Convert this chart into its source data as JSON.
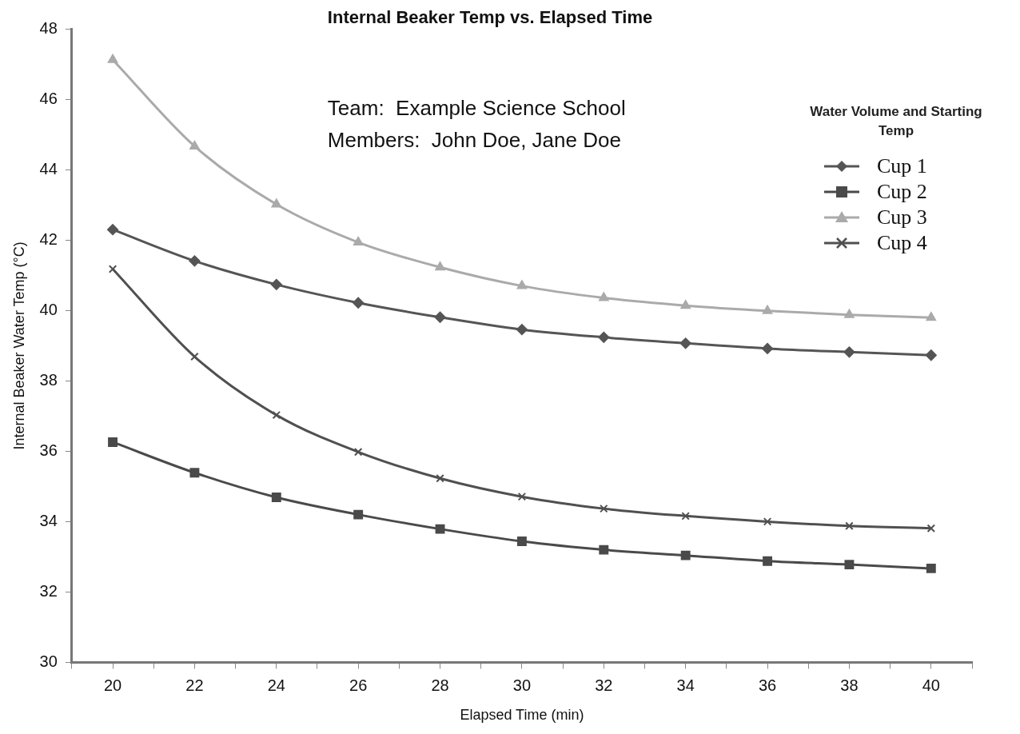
{
  "chart_data": {
    "type": "line",
    "title": "Internal Beaker Temp vs. Elapsed Time",
    "xlabel": "Elapsed Time (min)",
    "ylabel": "Internal Beaker Water Temp (°C)",
    "legend_title": "Water Volume and Starting Temp",
    "annotations": [
      "Team:  Example Science School",
      "Members:  John Doe, Jane Doe"
    ],
    "x": [
      20,
      22,
      24,
      26,
      28,
      30,
      32,
      34,
      36,
      38,
      40
    ],
    "series": [
      {
        "name": "Cup 1",
        "color": "#555555",
        "marker": "diamond",
        "values": [
          42.3,
          41.41,
          40.74,
          40.22,
          39.81,
          39.46,
          39.24,
          39.07,
          38.92,
          38.82,
          38.73
        ]
      },
      {
        "name": "Cup 2",
        "color": "#4a4a4a",
        "marker": "square",
        "values": [
          36.26,
          35.39,
          34.69,
          34.2,
          33.79,
          33.44,
          33.2,
          33.04,
          32.88,
          32.78,
          32.67
        ]
      },
      {
        "name": "Cup 3",
        "color": "#aaaaaa",
        "marker": "triangle",
        "values": [
          47.13,
          44.67,
          43.02,
          41.94,
          41.23,
          40.7,
          40.36,
          40.14,
          39.99,
          39.88,
          39.8
        ]
      },
      {
        "name": "Cup 4",
        "color": "#505050",
        "marker": "cross",
        "values": [
          41.18,
          38.69,
          37.03,
          35.98,
          35.23,
          34.71,
          34.37,
          34.16,
          34.0,
          33.88,
          33.81
        ]
      }
    ],
    "xlim": [
      19,
      41
    ],
    "xticks": [
      {
        "value": 19,
        "label": null
      },
      20,
      {
        "value": 21,
        "label": null
      },
      22,
      {
        "value": 23,
        "label": null
      },
      24,
      {
        "value": 25,
        "label": null
      },
      26,
      {
        "value": 27,
        "label": null
      },
      28,
      {
        "value": 29,
        "label": null
      },
      30,
      {
        "value": 31,
        "label": null
      },
      32,
      {
        "value": 33,
        "label": null
      },
      34,
      {
        "value": 35,
        "label": null
      },
      36,
      {
        "value": 37,
        "label": null
      },
      38,
      {
        "value": 39,
        "label": null
      },
      40,
      {
        "value": 41,
        "label": null
      }
    ],
    "ylim": [
      30,
      48
    ],
    "yticks": [
      30,
      32,
      34,
      36,
      38,
      40,
      42,
      44,
      46,
      48
    ],
    "grid": false,
    "legend": "top right",
    "line_style": "solid"
  }
}
